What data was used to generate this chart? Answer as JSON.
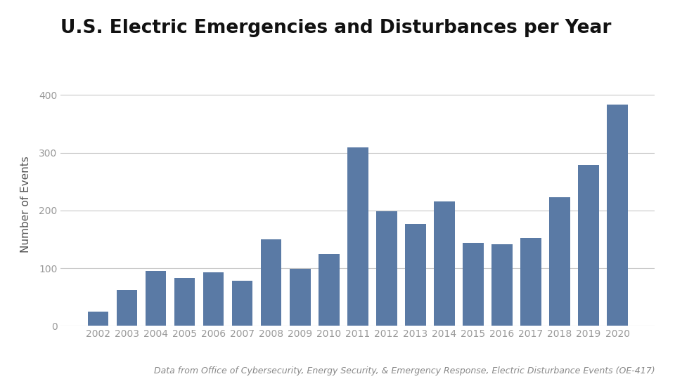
{
  "title": "U.S. Electric Emergencies and Disturbances per Year",
  "ylabel": "Number of Events",
  "xlabel": "",
  "caption": "Data from Office of Cybersecurity, Energy Security, & Emergency Response, Electric Disturbance Events (OE-417)",
  "years": [
    2002,
    2003,
    2004,
    2005,
    2006,
    2007,
    2008,
    2009,
    2010,
    2011,
    2012,
    2013,
    2014,
    2015,
    2016,
    2017,
    2018,
    2019,
    2020
  ],
  "values": [
    25,
    63,
    95,
    83,
    93,
    78,
    150,
    99,
    124,
    309,
    198,
    177,
    216,
    144,
    141,
    152,
    223,
    279,
    383
  ],
  "bar_color": "#5a7aa5",
  "ylim": [
    0,
    420
  ],
  "yticks": [
    0,
    100,
    200,
    300,
    400
  ],
  "background_color": "#ffffff",
  "grid_color": "#c8c8c8",
  "title_fontsize": 19,
  "axis_label_fontsize": 11,
  "tick_fontsize": 10,
  "caption_fontsize": 9,
  "tick_color": "#999999",
  "ylabel_color": "#555555"
}
